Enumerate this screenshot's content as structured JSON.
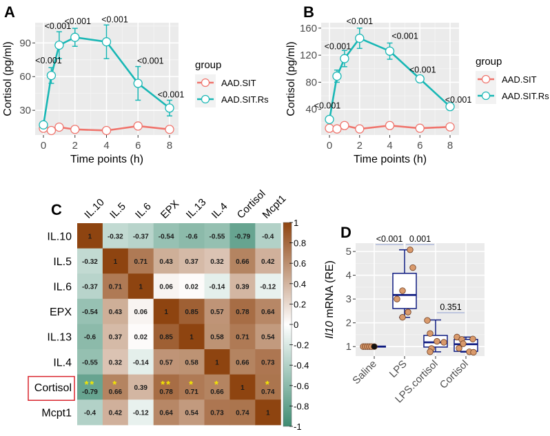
{
  "chart_data": [
    {
      "panel": "A",
      "type": "line",
      "xlabel": "Time points (h)",
      "ylabel": "Cortisol (pg/ml)",
      "xlim": [
        0,
        8
      ],
      "ylim": [
        8,
        108
      ],
      "xticks": [
        0,
        2,
        4,
        6,
        8
      ],
      "yticks": [
        30,
        60,
        90
      ],
      "grid": true,
      "legend": {
        "title": "group",
        "position": "right"
      },
      "series": [
        {
          "name": "AAD.SIT",
          "color": "#F0736B",
          "x": [
            0,
            0.5,
            1,
            2,
            4,
            6,
            8
          ],
          "y": [
            14,
            12,
            15,
            13,
            12,
            16,
            13
          ]
        },
        {
          "name": "AAD.SIT.Rs",
          "color": "#18B7B5",
          "x": [
            0,
            0.5,
            1,
            2,
            4,
            6,
            8
          ],
          "y": [
            17,
            61,
            88,
            95,
            91,
            54,
            32
          ],
          "err": [
            2,
            7,
            12,
            8,
            15,
            15,
            7
          ],
          "annotations": [
            "",
            "<0.001",
            "<0.001",
            "<0.001",
            "<0.001",
            "<0.001",
            "<0.001"
          ]
        }
      ]
    },
    {
      "panel": "B",
      "type": "line",
      "xlabel": "Time points (h)",
      "ylabel": "Cortisol (pg/ml)",
      "xlim": [
        0,
        8
      ],
      "ylim": [
        2,
        168
      ],
      "xticks": [
        0,
        2,
        4,
        6,
        8
      ],
      "yticks": [
        40,
        80,
        120,
        160
      ],
      "grid": true,
      "legend": {
        "title": "group",
        "position": "right"
      },
      "series": [
        {
          "name": "AAD.SIT",
          "color": "#F0736B",
          "x": [
            0,
            0.5,
            1,
            2,
            4,
            6,
            8
          ],
          "y": [
            12,
            11,
            16,
            11,
            16,
            12,
            14
          ]
        },
        {
          "name": "AAD.SIT.Rs",
          "color": "#18B7B5",
          "x": [
            0,
            0.5,
            1,
            2,
            4,
            6,
            8
          ],
          "y": [
            25,
            89,
            115,
            145,
            126,
            85,
            44
          ],
          "err": [
            2,
            9,
            12,
            15,
            12,
            3,
            2
          ],
          "annotations": [
            "",
            "<0.001",
            "<0.001",
            "<0.001",
            "<0.001",
            "<0.001",
            "<0.001"
          ]
        }
      ]
    },
    {
      "panel": "C",
      "type": "heatmap",
      "labels": [
        "IL.10",
        "IL.5",
        "IL.6",
        "EPX",
        "IL.13",
        "IL.4",
        "Cortisol",
        "Mcpt1"
      ],
      "highlight_label": "Cortisol",
      "matrix": [
        [
          1,
          -0.32,
          -0.37,
          -0.54,
          -0.6,
          -0.55,
          -0.79,
          -0.4
        ],
        [
          -0.32,
          1,
          0.71,
          0.43,
          0.37,
          0.32,
          0.66,
          0.42
        ],
        [
          -0.37,
          0.71,
          1,
          0.06,
          0.02,
          -0.14,
          0.39,
          -0.12
        ],
        [
          -0.54,
          0.43,
          0.06,
          1,
          0.85,
          0.57,
          0.78,
          0.64
        ],
        [
          -0.6,
          0.37,
          0.02,
          0.85,
          1,
          0.58,
          0.71,
          0.54
        ],
        [
          -0.55,
          0.32,
          -0.14,
          0.57,
          0.58,
          1,
          0.66,
          0.73
        ],
        [
          -0.79,
          0.66,
          0.39,
          0.78,
          0.71,
          0.66,
          1,
          0.74
        ],
        [
          -0.4,
          0.42,
          -0.12,
          0.64,
          0.54,
          0.73,
          0.74,
          1
        ]
      ],
      "significance": [
        [
          "",
          "",
          "",
          "",
          "",
          "",
          "",
          ""
        ],
        [
          "",
          "",
          "",
          "",
          "",
          "",
          "",
          ""
        ],
        [
          "",
          "",
          "",
          "",
          "",
          "",
          "",
          ""
        ],
        [
          "",
          "",
          "",
          "",
          "",
          "",
          "",
          ""
        ],
        [
          "",
          "",
          "",
          "",
          "",
          "",
          "",
          ""
        ],
        [
          "",
          "",
          "",
          "",
          "",
          "",
          "",
          ""
        ],
        [
          "**",
          "*",
          "",
          "**",
          "*",
          "*",
          "",
          "*"
        ],
        [
          "",
          "",
          "",
          "",
          "",
          "",
          "",
          ""
        ]
      ],
      "colorbar": {
        "range": [
          -1,
          1
        ],
        "ticks": [
          "1",
          "0.8",
          "0.6",
          "0.4",
          "0.2",
          "0",
          "-0.2",
          "-0.4",
          "-0.6",
          "-0.8",
          "-1"
        ],
        "low_color": "#3F8C72",
        "mid_color": "#FFFFFF",
        "high_color": "#8E4410"
      }
    },
    {
      "panel": "D",
      "type": "box",
      "ylabel_italic": "Il10",
      "ylabel_rest": " mRNA (RE)",
      "ylim": [
        0.6,
        5.35
      ],
      "yticks": [
        1,
        2,
        3,
        4,
        5
      ],
      "categories": [
        "Saline",
        "LPS",
        "LPS.cortisol",
        "Cortisol"
      ],
      "boxes": [
        {
          "min": 1.0,
          "q1": 1.0,
          "median": 1.0,
          "q3": 1.0,
          "max": 1.0
        },
        {
          "min": 2.23,
          "q1": 2.6,
          "median": 3.17,
          "q3": 4.08,
          "max": 5.07
        },
        {
          "min": 0.78,
          "q1": 0.98,
          "median": 1.18,
          "q3": 1.47,
          "max": 2.12
        },
        {
          "min": 0.77,
          "q1": 0.8,
          "median": 1.1,
          "q3": 1.3,
          "max": 1.4
        }
      ],
      "points": [
        [
          1.0,
          1.0,
          1.0,
          1.0,
          1.0,
          1.0
        ],
        [
          5.07,
          4.32,
          3.35,
          3.0,
          2.45,
          2.23
        ],
        [
          2.1,
          1.55,
          1.22,
          1.18,
          0.92,
          0.78
        ],
        [
          1.4,
          1.3,
          1.32,
          1.12,
          0.93,
          0.78,
          0.76
        ]
      ],
      "comparisons": [
        {
          "from": 0,
          "to": 1,
          "label": "<0.001"
        },
        {
          "from": 1,
          "to": 2,
          "label": "0.001"
        },
        {
          "from": 2,
          "to": 3,
          "label": "0.351"
        }
      ],
      "box_color": "#0D1A80",
      "point_color": "#D99A6C"
    }
  ],
  "panel_labels": {
    "a": "A",
    "b": "B",
    "c": "C",
    "d": "D"
  }
}
